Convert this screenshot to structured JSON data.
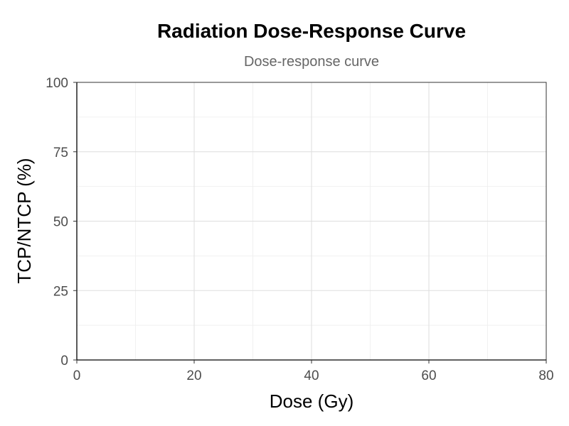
{
  "chart_data": {
    "type": "line",
    "title": "Radiation Dose-Response Curve",
    "subtitle": "Dose-response curve",
    "xlabel": "Dose (Gy)",
    "ylabel": "TCP/NTCP (%)",
    "xlim": [
      0,
      80
    ],
    "ylim": [
      0,
      100
    ],
    "x_ticks": [
      0,
      20,
      40,
      60,
      80
    ],
    "y_ticks": [
      0,
      25,
      50,
      75,
      100
    ],
    "x_minor_ticks": [
      10,
      30,
      50,
      70
    ],
    "y_minor_ticks": [
      12.5,
      37.5,
      62.5,
      87.5
    ],
    "grid": true,
    "series": [],
    "colors": {
      "grid_major": "#dedede",
      "grid_minor": "#eeeeee",
      "axis": "#000000",
      "tick_text": "#4d4d4d",
      "subtitle": "#666666"
    }
  }
}
